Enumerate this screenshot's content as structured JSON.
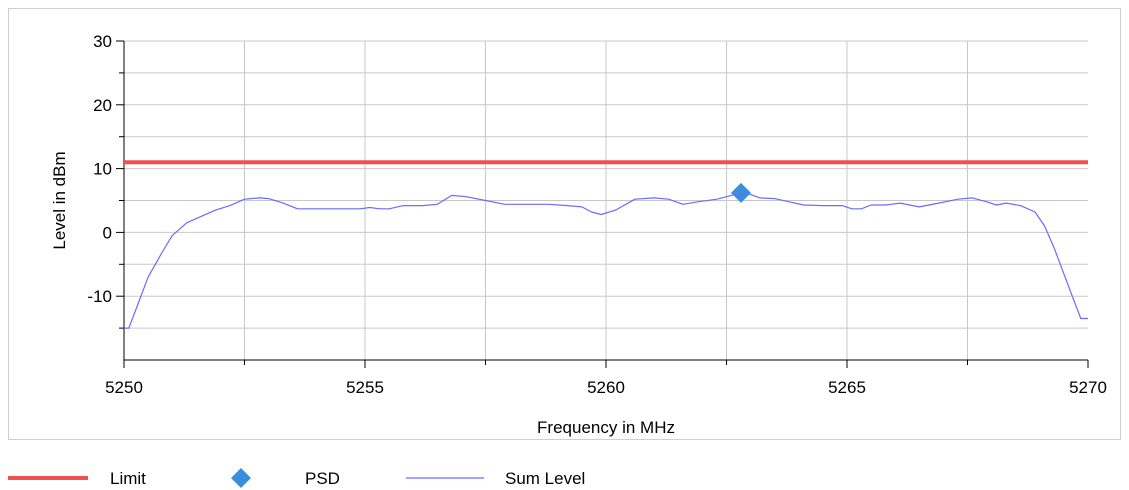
{
  "chart_data": {
    "type": "line",
    "title": "",
    "xlabel": "Frequency in MHz",
    "ylabel": "Level in dBm",
    "xlim": [
      5250,
      5270
    ],
    "ylim": [
      -20,
      30
    ],
    "x_ticks": [
      5250,
      5255,
      5260,
      5265,
      5270
    ],
    "y_ticks": [
      30,
      20,
      10,
      0,
      -10
    ],
    "grid": true,
    "legend_position": "bottom",
    "series": [
      {
        "name": "Limit",
        "kind": "line",
        "color": "#f05050",
        "points": [
          [
            5250,
            11
          ],
          [
            5270,
            11
          ]
        ]
      },
      {
        "name": "PSD",
        "kind": "marker",
        "marker": "diamond",
        "color": "#3a8fdc",
        "points": [
          [
            5262.8,
            6.2
          ]
        ]
      },
      {
        "name": "Sum Level",
        "kind": "line",
        "color": "#6b6bff",
        "points": [
          [
            5250.0,
            -15.0
          ],
          [
            5250.1,
            -15.0
          ],
          [
            5250.3,
            -11.0
          ],
          [
            5250.5,
            -7.0
          ],
          [
            5250.8,
            -3.0
          ],
          [
            5251.0,
            -0.5
          ],
          [
            5251.3,
            1.5
          ],
          [
            5251.6,
            2.5
          ],
          [
            5251.9,
            3.5
          ],
          [
            5252.2,
            4.2
          ],
          [
            5252.5,
            5.2
          ],
          [
            5252.8,
            5.4
          ],
          [
            5253.0,
            5.3
          ],
          [
            5253.3,
            4.6
          ],
          [
            5253.6,
            3.7
          ],
          [
            5254.0,
            3.7
          ],
          [
            5254.5,
            3.7
          ],
          [
            5254.9,
            3.7
          ],
          [
            5255.1,
            3.9
          ],
          [
            5255.3,
            3.7
          ],
          [
            5255.5,
            3.7
          ],
          [
            5255.8,
            4.2
          ],
          [
            5256.2,
            4.2
          ],
          [
            5256.5,
            4.4
          ],
          [
            5256.8,
            5.8
          ],
          [
            5257.1,
            5.6
          ],
          [
            5257.5,
            5.0
          ],
          [
            5257.9,
            4.4
          ],
          [
            5258.3,
            4.4
          ],
          [
            5258.8,
            4.4
          ],
          [
            5259.2,
            4.2
          ],
          [
            5259.5,
            4.0
          ],
          [
            5259.7,
            3.2
          ],
          [
            5259.9,
            2.8
          ],
          [
            5260.2,
            3.5
          ],
          [
            5260.6,
            5.2
          ],
          [
            5261.0,
            5.4
          ],
          [
            5261.3,
            5.2
          ],
          [
            5261.6,
            4.4
          ],
          [
            5261.9,
            4.8
          ],
          [
            5262.3,
            5.2
          ],
          [
            5262.6,
            5.8
          ],
          [
            5262.9,
            6.2
          ],
          [
            5263.2,
            5.4
          ],
          [
            5263.5,
            5.3
          ],
          [
            5263.8,
            4.8
          ],
          [
            5264.1,
            4.3
          ],
          [
            5264.5,
            4.2
          ],
          [
            5264.9,
            4.2
          ],
          [
            5265.1,
            3.7
          ],
          [
            5265.3,
            3.7
          ],
          [
            5265.5,
            4.3
          ],
          [
            5265.8,
            4.3
          ],
          [
            5266.1,
            4.6
          ],
          [
            5266.5,
            4.0
          ],
          [
            5266.9,
            4.6
          ],
          [
            5267.3,
            5.2
          ],
          [
            5267.6,
            5.4
          ],
          [
            5267.9,
            4.8
          ],
          [
            5268.1,
            4.3
          ],
          [
            5268.3,
            4.6
          ],
          [
            5268.6,
            4.2
          ],
          [
            5268.9,
            3.2
          ],
          [
            5269.1,
            1.0
          ],
          [
            5269.3,
            -2.5
          ],
          [
            5269.5,
            -6.5
          ],
          [
            5269.7,
            -10.5
          ],
          [
            5269.85,
            -13.5
          ],
          [
            5270.0,
            -13.5
          ]
        ]
      }
    ]
  },
  "legend": [
    {
      "label": "Limit",
      "symbol": "line",
      "color": "#f05050"
    },
    {
      "label": "PSD",
      "symbol": "diamond",
      "color": "#3a8fdc"
    },
    {
      "label": "Sum Level",
      "symbol": "thin-line",
      "color": "#6b6bff"
    }
  ]
}
